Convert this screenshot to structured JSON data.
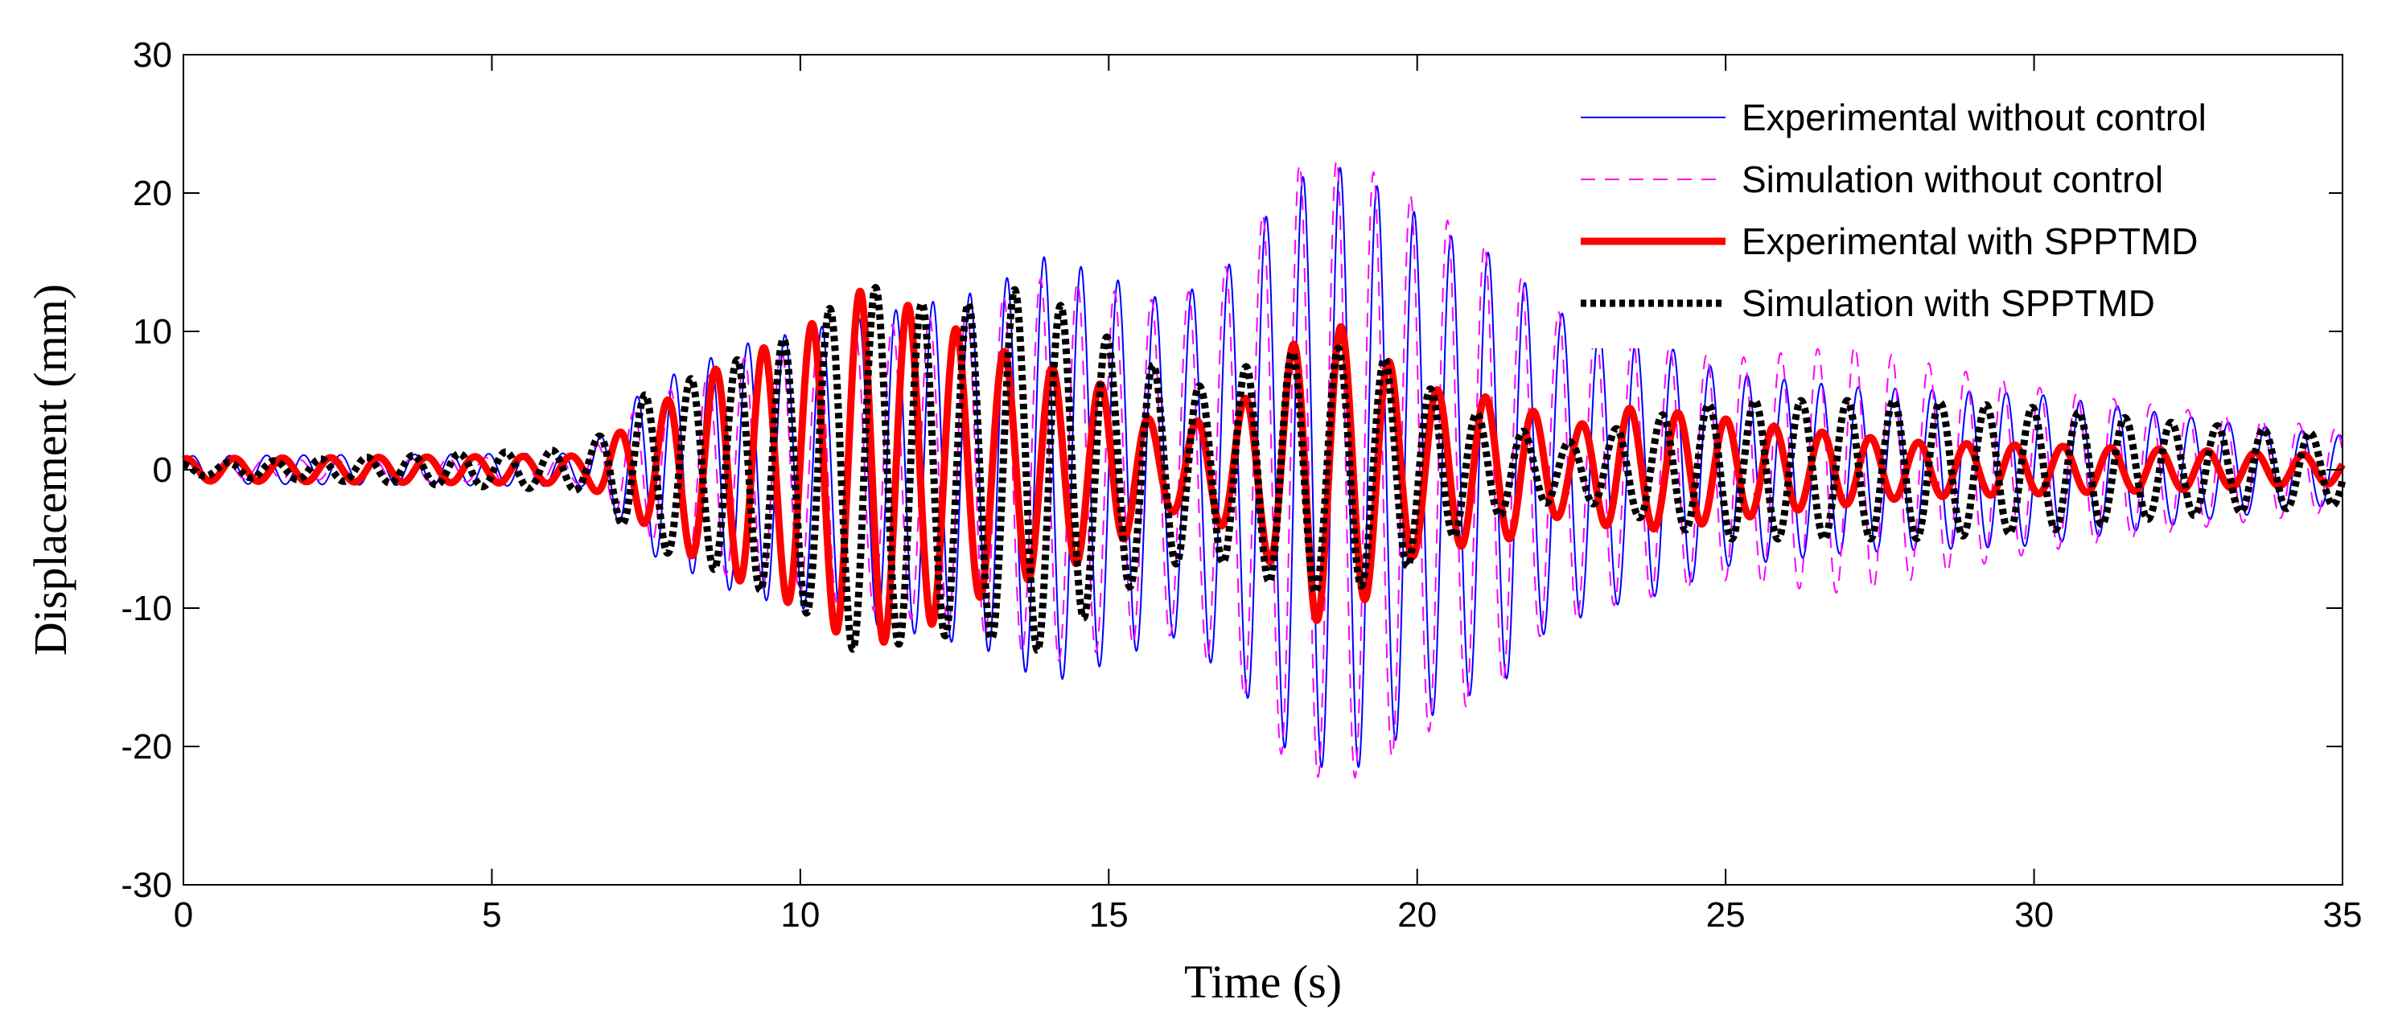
{
  "chart_data": {
    "type": "line",
    "title": "",
    "xlabel": "Time (s)",
    "ylabel": "Displacement (mm)",
    "xlim": [
      0,
      35
    ],
    "ylim": [
      -30,
      30
    ],
    "xticks": [
      0,
      5,
      10,
      15,
      20,
      25,
      30,
      35
    ],
    "yticks": [
      -30,
      -20,
      -10,
      0,
      10,
      20,
      30
    ],
    "grid": false,
    "legend_position": "top-right",
    "series": [
      {
        "name": "Experimental without control",
        "color": "#0000ff",
        "style": "solid-thin",
        "period": 0.6,
        "envelope": [
          [
            0,
            1.0
          ],
          [
            6.5,
            1.2
          ],
          [
            7.5,
            6
          ],
          [
            9,
            9
          ],
          [
            11,
            11
          ],
          [
            13,
            13
          ],
          [
            14,
            15.5
          ],
          [
            15,
            14
          ],
          [
            16,
            12
          ],
          [
            17,
            15
          ],
          [
            18,
            21
          ],
          [
            18.9,
            22
          ],
          [
            19.5,
            20
          ],
          [
            20.5,
            17
          ],
          [
            21.5,
            15
          ],
          [
            22,
            12
          ],
          [
            23,
            10
          ],
          [
            24,
            9
          ],
          [
            25,
            7
          ],
          [
            27,
            6
          ],
          [
            30,
            5.5
          ],
          [
            33,
            3.5
          ],
          [
            35,
            2.5
          ]
        ]
      },
      {
        "name": "Simulation without control",
        "color": "#ff00ff",
        "style": "dashed-thin",
        "period": 0.6,
        "envelope": [
          [
            0,
            0.6
          ],
          [
            6.5,
            1.0
          ],
          [
            7.5,
            5
          ],
          [
            9,
            8
          ],
          [
            11,
            10
          ],
          [
            13,
            12
          ],
          [
            14,
            14
          ],
          [
            15,
            13
          ],
          [
            16,
            12
          ],
          [
            17,
            15
          ],
          [
            18,
            22
          ],
          [
            18.9,
            22.5
          ],
          [
            19.5,
            21
          ],
          [
            20.5,
            18
          ],
          [
            21.5,
            15
          ],
          [
            22,
            12
          ],
          [
            23,
            10
          ],
          [
            24,
            9
          ],
          [
            25,
            8
          ],
          [
            27,
            9
          ],
          [
            28,
            8
          ],
          [
            30,
            6
          ],
          [
            33,
            4
          ],
          [
            35,
            3
          ]
        ]
      },
      {
        "name": "Experimental with SPPTMD",
        "color": "#ff0000",
        "style": "solid-thick",
        "period": 0.78,
        "envelope": [
          [
            0,
            0.8
          ],
          [
            6.5,
            1.0
          ],
          [
            7.5,
            4
          ],
          [
            8.5,
            7
          ],
          [
            10,
            10
          ],
          [
            11,
            13
          ],
          [
            12,
            11.5
          ],
          [
            13,
            9
          ],
          [
            14,
            7.5
          ],
          [
            15,
            6
          ],
          [
            15.5,
            4
          ],
          [
            16,
            3
          ],
          [
            16.8,
            4
          ],
          [
            17.5,
            6
          ],
          [
            18.3,
            11
          ],
          [
            19,
            10
          ],
          [
            20,
            6
          ],
          [
            21.5,
            5
          ],
          [
            22.5,
            3
          ],
          [
            23.3,
            4.5
          ],
          [
            24.5,
            4
          ],
          [
            26,
            3
          ],
          [
            28,
            2
          ],
          [
            32,
            1.5
          ],
          [
            35,
            1.0
          ]
        ]
      },
      {
        "name": "Simulation with SPPTMD",
        "color": "#000000",
        "style": "dotted-thick",
        "period": 0.75,
        "envelope": [
          [
            0,
            0.4
          ],
          [
            6.5,
            1.5
          ],
          [
            7.5,
            5.5
          ],
          [
            8.5,
            7
          ],
          [
            10,
            10
          ],
          [
            11,
            13.5
          ],
          [
            12,
            12
          ],
          [
            13,
            12
          ],
          [
            13.7,
            13.5
          ],
          [
            14.5,
            11
          ],
          [
            15.5,
            8
          ],
          [
            16.5,
            6
          ],
          [
            17.5,
            8
          ],
          [
            18.5,
            9
          ],
          [
            19.5,
            8
          ],
          [
            20.5,
            5
          ],
          [
            21.5,
            3
          ],
          [
            22.5,
            2
          ],
          [
            24,
            4
          ],
          [
            25,
            5
          ],
          [
            26,
            5
          ],
          [
            28,
            5
          ],
          [
            30,
            4.5
          ],
          [
            32,
            3.5
          ],
          [
            35,
            2.5
          ]
        ]
      }
    ]
  }
}
